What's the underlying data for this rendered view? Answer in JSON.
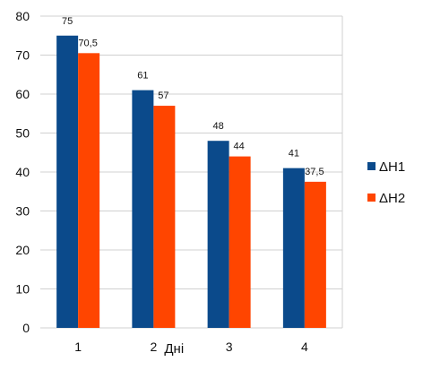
{
  "chart_data": {
    "type": "bar",
    "categories": [
      "1",
      "2",
      "3",
      "4"
    ],
    "series": [
      {
        "name": "ΔH1",
        "values": [
          75,
          61,
          48,
          41
        ],
        "labels": [
          "75",
          "61",
          "48",
          "41"
        ],
        "color": "#0B4A8B"
      },
      {
        "name": "ΔH2",
        "values": [
          70.5,
          57,
          44,
          37.5
        ],
        "labels": [
          "70,5",
          "57",
          "44",
          "37,5"
        ],
        "color": "#FF4500"
      }
    ],
    "xlabel": "Дні",
    "ylabel": "",
    "ylim": [
      0,
      80
    ],
    "yticks": [
      0,
      10,
      20,
      30,
      40,
      50,
      60,
      70,
      80
    ],
    "grid": true,
    "legend_position": "right"
  }
}
